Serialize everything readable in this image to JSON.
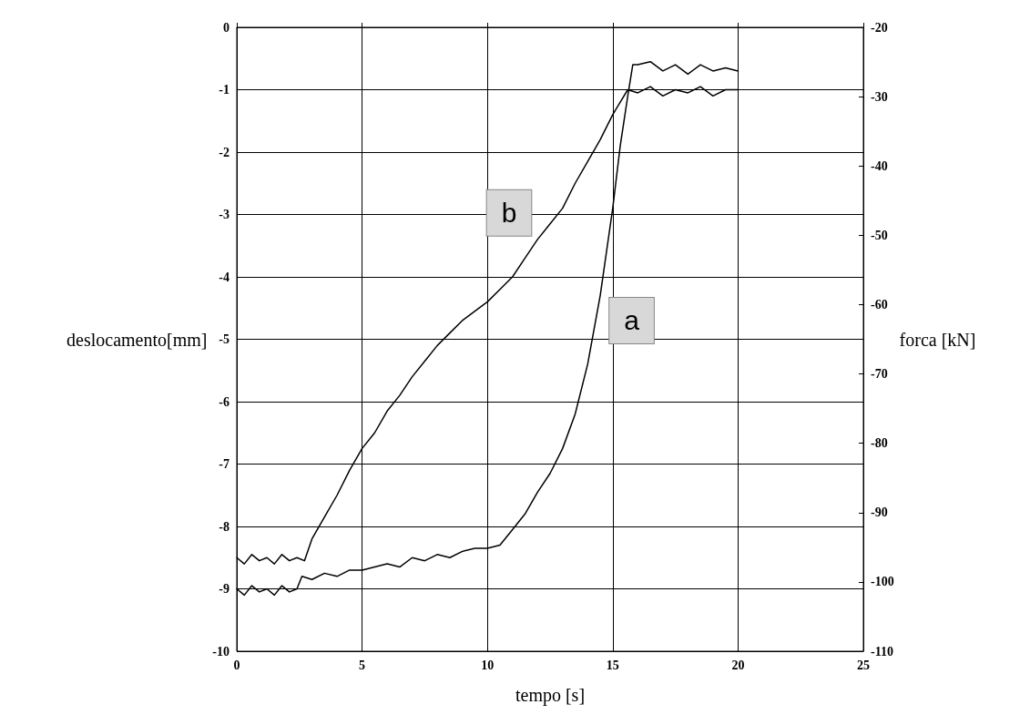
{
  "chart_data": {
    "type": "line",
    "xlabel": "tempo [s]",
    "ylabel": "deslocamento[mm]",
    "y2label": "forca [kN]",
    "xlim": [
      0,
      25
    ],
    "xticks": [
      0,
      5,
      10,
      15,
      20,
      25
    ],
    "ylim": [
      -10,
      0
    ],
    "yticks": [
      -10,
      -9,
      -8,
      -7,
      -6,
      -5,
      -4,
      -3,
      -2,
      -1,
      0
    ],
    "y2lim": [
      -110,
      -20
    ],
    "y2ticks": [
      -110,
      -100,
      -90,
      -80,
      -70,
      -60,
      -50,
      -40,
      -30,
      -20
    ],
    "grid": true,
    "marker": "none",
    "line_style": "solid",
    "series": [
      {
        "color": "#000000",
        "x": [
          0,
          0.3,
          0.6,
          0.9,
          1.2,
          1.5,
          1.8,
          2.1,
          2.4,
          2.6,
          3,
          3.5,
          4,
          4.5,
          5,
          5.5,
          6,
          6.5,
          7,
          7.5,
          8,
          8.5,
          9,
          9.5,
          10,
          10.5,
          11,
          11.5,
          12,
          12.5,
          13,
          13.5,
          14,
          14.5,
          15,
          15.3,
          15.6,
          15.8,
          16,
          16.5,
          17,
          17.5,
          18,
          18.5,
          19,
          19.5,
          20
        ],
        "values": [
          -9.0,
          -9.1,
          -8.95,
          -9.05,
          -9.0,
          -9.1,
          -8.95,
          -9.05,
          -9.0,
          -8.8,
          -8.85,
          -8.75,
          -8.8,
          -8.7,
          -8.7,
          -8.65,
          -8.6,
          -8.65,
          -8.5,
          -8.55,
          -8.45,
          -8.5,
          -8.4,
          -8.35,
          -8.35,
          -8.3,
          -8.05,
          -7.8,
          -7.45,
          -7.15,
          -6.75,
          -6.2,
          -5.4,
          -4.3,
          -2.9,
          -1.9,
          -1.1,
          -0.6,
          -0.6,
          -0.55,
          -0.7,
          -0.6,
          -0.75,
          -0.6,
          -0.7,
          -0.65,
          -0.7
        ]
      },
      {
        "color": "#000000",
        "x": [
          0,
          0.3,
          0.6,
          0.9,
          1.2,
          1.5,
          1.8,
          2.1,
          2.4,
          2.7,
          3,
          3.5,
          4,
          4.5,
          5,
          5.5,
          6,
          6.5,
          7,
          7.5,
          8,
          8.5,
          9,
          9.5,
          10,
          10.5,
          11,
          11.5,
          12,
          12.5,
          13,
          13.5,
          14,
          14.5,
          15,
          15.3,
          15.6,
          16,
          16.5,
          17,
          17.5,
          18,
          18.5,
          19,
          19.5,
          20
        ],
        "values": [
          -8.5,
          -8.6,
          -8.45,
          -8.55,
          -8.5,
          -8.6,
          -8.45,
          -8.55,
          -8.5,
          -8.55,
          -8.2,
          -7.85,
          -7.5,
          -7.1,
          -6.75,
          -6.5,
          -6.15,
          -5.9,
          -5.6,
          -5.35,
          -5.1,
          -4.9,
          -4.7,
          -4.55,
          -4.4,
          -4.2,
          -4.0,
          -3.7,
          -3.4,
          -3.15,
          -2.9,
          -2.5,
          -2.15,
          -1.8,
          -1.4,
          -1.2,
          -1.0,
          -1.05,
          -0.95,
          -1.1,
          -1.0,
          -1.05,
          -0.95,
          -1.1,
          -1.0,
          -1.0
        ]
      }
    ],
    "annotations": [
      {
        "text": "b",
        "x": 12.5,
        "y": -3.15
      },
      {
        "text": "a",
        "x": 14.3,
        "y": -4.7
      }
    ]
  }
}
